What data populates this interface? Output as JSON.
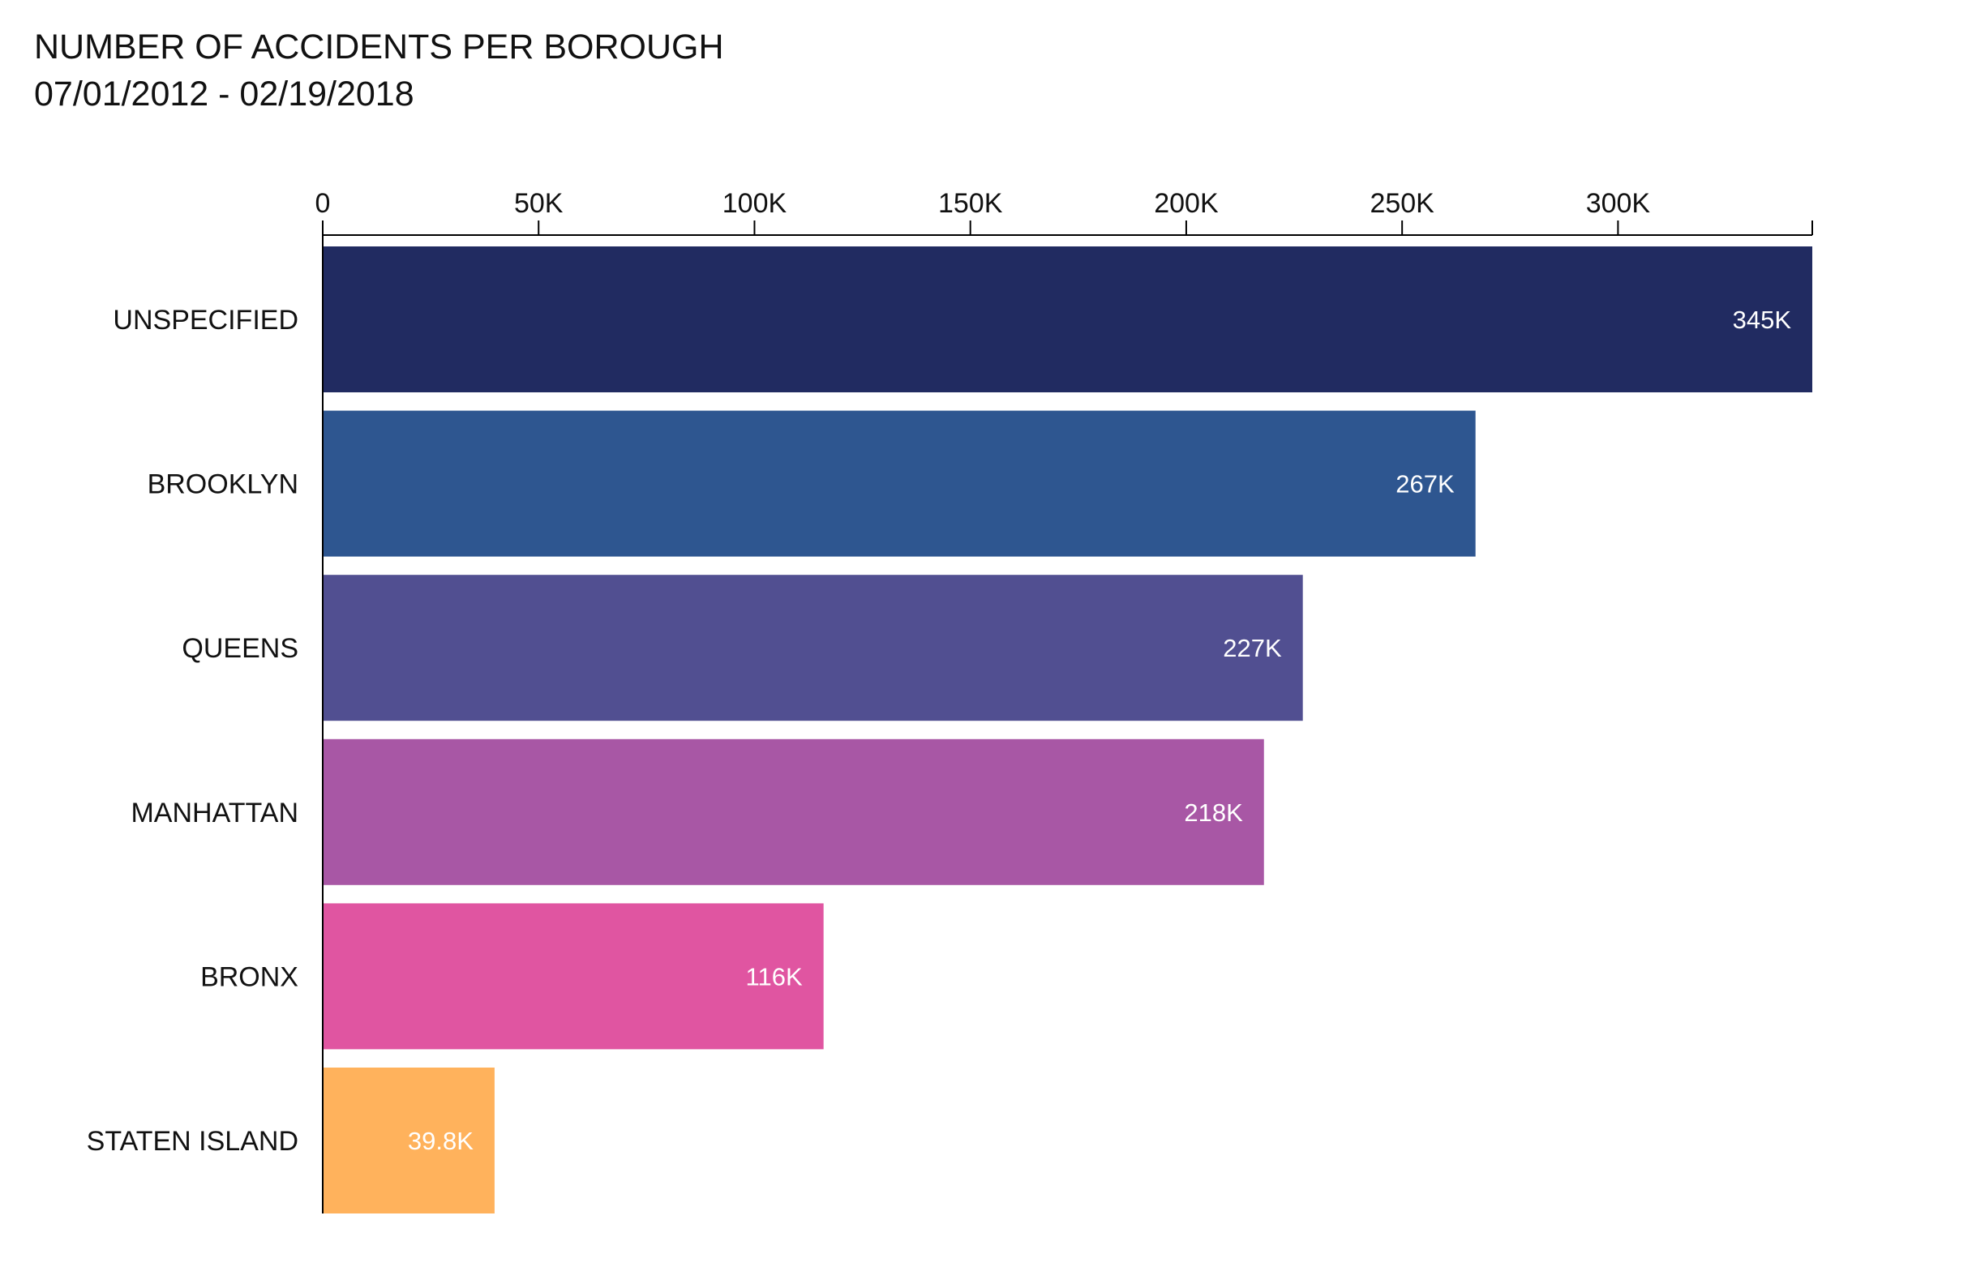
{
  "chart_data": {
    "type": "bar",
    "orientation": "horizontal",
    "title": "NUMBER OF ACCIDENTS PER BOROUGH",
    "subtitle": "07/01/2012 - 02/19/2018",
    "categories": [
      "UNSPECIFIED",
      "BROOKLYN",
      "QUEENS",
      "MANHATTAN",
      "BRONX",
      "STATEN ISLAND"
    ],
    "values": [
      345000,
      267000,
      227000,
      218000,
      116000,
      39800
    ],
    "data_labels": [
      "345K",
      "267K",
      "227K",
      "218K",
      "116K",
      "39.8K"
    ],
    "colors": [
      "#212b61",
      "#2e5690",
      "#514f91",
      "#a857a5",
      "#e055a1",
      "#ffb25c"
    ],
    "xlim": [
      0,
      345000
    ],
    "x_ticks": [
      0,
      50000,
      100000,
      150000,
      200000,
      250000,
      300000
    ],
    "x_tick_labels": [
      "0",
      "50K",
      "100K",
      "150K",
      "200K",
      "250K",
      "300K"
    ],
    "x_axis_position": "top",
    "grid": false,
    "legend": "none"
  }
}
